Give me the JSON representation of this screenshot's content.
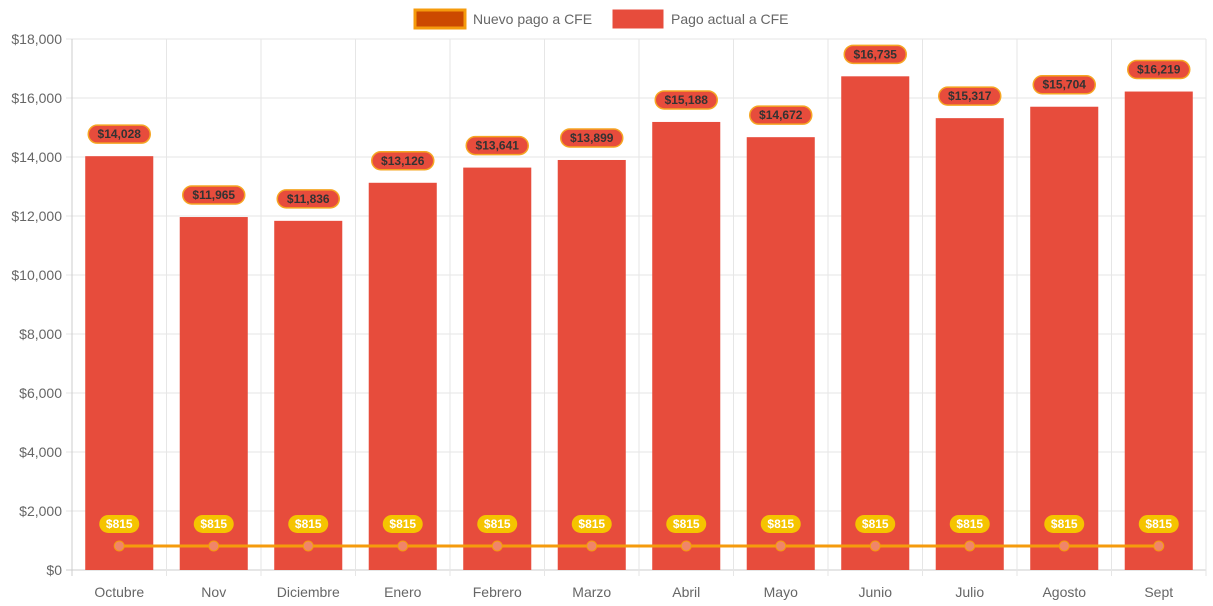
{
  "chart_data": {
    "type": "bar",
    "categories": [
      "Octubre",
      "Nov",
      "Diciembre",
      "Enero",
      "Febrero",
      "Marzo",
      "Abril",
      "Mayo",
      "Junio",
      "Julio",
      "Agosto",
      "Sept"
    ],
    "series": [
      {
        "name": "Nuevo pago a CFE",
        "type": "line",
        "values": [
          815,
          815,
          815,
          815,
          815,
          815,
          815,
          815,
          815,
          815,
          815,
          815
        ],
        "labels": [
          "$815",
          "$815",
          "$815",
          "$815",
          "$815",
          "$815",
          "$815",
          "$815",
          "$815",
          "$815",
          "$815",
          "$815"
        ],
        "color": "#f59b0c",
        "point_color": "#f0856a",
        "legend_fill": "#cc4a00",
        "label_bg": "#f5c400"
      },
      {
        "name": "Pago actual a CFE",
        "type": "bar",
        "values": [
          14028,
          11965,
          11836,
          13126,
          13641,
          13899,
          15188,
          14672,
          16735,
          15317,
          15704,
          16219
        ],
        "labels": [
          "$14,028",
          "$11,965",
          "$11,836",
          "$13,126",
          "$13,641",
          "$13,899",
          "$15,188",
          "$14,672",
          "$16,735",
          "$15,317",
          "$15,704",
          "$16,219"
        ],
        "color": "#e74c3c",
        "label_bg": "#e74c3c",
        "label_border": "#f5a623"
      }
    ],
    "ylim": [
      0,
      18000
    ],
    "yticks": [
      0,
      2000,
      4000,
      6000,
      8000,
      10000,
      12000,
      14000,
      16000,
      18000
    ],
    "ytick_labels": [
      "$0",
      "$2,000",
      "$4,000",
      "$6,000",
      "$8,000",
      "$10,000",
      "$12,000",
      "$14,000",
      "$16,000",
      "$18,000"
    ],
    "legend_position": "top-center",
    "grid": true,
    "title": "",
    "xlabel": "",
    "ylabel": ""
  }
}
